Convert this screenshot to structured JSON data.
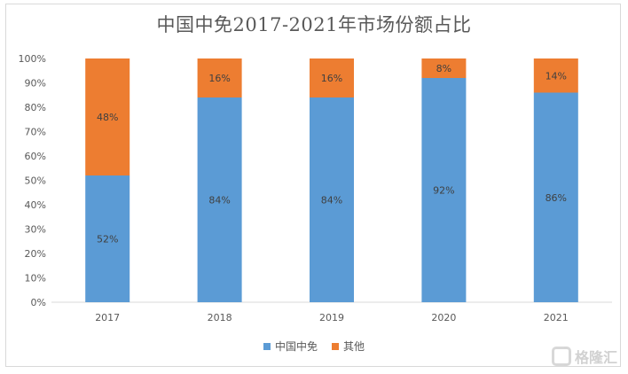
{
  "chart_data": {
    "type": "bar",
    "stacked": true,
    "title": "中国中免2017-2021年市场份额占比",
    "categories": [
      "2017",
      "2018",
      "2019",
      "2020",
      "2021"
    ],
    "series": [
      {
        "name": "中国中免",
        "values": [
          52,
          84,
          84,
          92,
          86
        ],
        "labels": [
          "52%",
          "84%",
          "84%",
          "92%",
          "86%"
        ],
        "color": "#5b9bd5"
      },
      {
        "name": "其他",
        "values": [
          48,
          16,
          16,
          8,
          14
        ],
        "labels": [
          "48%",
          "16%",
          "16%",
          "8%",
          "14%"
        ],
        "color": "#ed7d31"
      }
    ],
    "ylim": [
      0,
      100
    ],
    "yticks": [
      "0%",
      "10%",
      "20%",
      "30%",
      "40%",
      "50%",
      "60%",
      "70%",
      "80%",
      "90%",
      "100%"
    ],
    "grid": false,
    "legend_position": "bottom"
  },
  "watermark": {
    "text": "格隆汇"
  }
}
